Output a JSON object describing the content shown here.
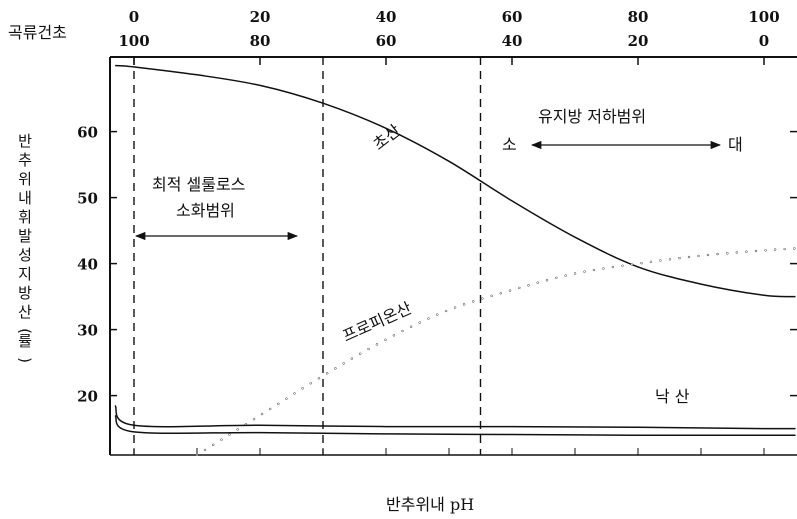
{
  "chart_data": {
    "type": "line",
    "title": "",
    "xlabel": "반추위내 pH",
    "ylabel": "반추위내 휘발성 지방산(률)",
    "top_axis_label": "곡류건초",
    "top_ticks_grain": [
      "0",
      "20",
      "40",
      "60",
      "80",
      "100"
    ],
    "top_ticks_hay": [
      "100",
      "80",
      "60",
      "40",
      "20",
      "0"
    ],
    "y_ticks": [
      "20",
      "30",
      "40",
      "50",
      "60"
    ],
    "ylim": [
      11,
      70
    ],
    "xlim": [
      0,
      105
    ],
    "grid": false,
    "legend": "none",
    "series": [
      {
        "name": "초산",
        "style": "solid",
        "x": [
          -3,
          0,
          10,
          20,
          30,
          40,
          50,
          60,
          70,
          80,
          90,
          100,
          105
        ],
        "y": [
          70,
          69.8,
          68.6,
          67,
          64.3,
          60.5,
          55.5,
          49.5,
          44,
          39.5,
          36.9,
          35.2,
          35
        ]
      },
      {
        "name": "프로피온산",
        "style": "dotted",
        "x": [
          10,
          20,
          30,
          40,
          50,
          60,
          70,
          80,
          90,
          100,
          105
        ],
        "y": [
          11,
          17,
          23,
          28.5,
          33,
          36,
          38.5,
          40,
          41.2,
          42,
          42.3
        ]
      },
      {
        "name": "낙 산",
        "style": "solid",
        "x": [
          -3,
          0,
          20,
          40,
          60,
          80,
          100,
          105
        ],
        "y": [
          18.5,
          15.5,
          15.5,
          15.3,
          15.3,
          15.2,
          15,
          15
        ]
      },
      {
        "name": "",
        "style": "solid",
        "x": [
          -3,
          0,
          20,
          40,
          60,
          80,
          100,
          105
        ],
        "y": [
          17,
          14.5,
          14.4,
          14.2,
          14.1,
          14,
          14,
          14
        ]
      }
    ],
    "vlines": [
      0,
      30,
      55
    ],
    "annotations": {
      "optimal_cellulose_line1": "최적 셀룰로스",
      "optimal_cellulose_line2": "소화범위",
      "milk_fat_range": "유지방 저하범위",
      "small": "소",
      "large": "대"
    }
  }
}
